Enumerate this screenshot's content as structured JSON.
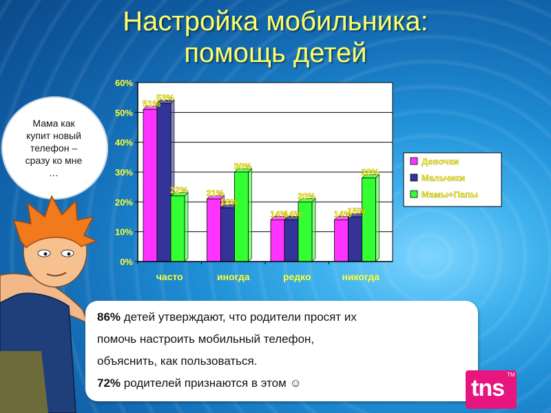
{
  "title": {
    "line1": "Настройка мобильника:",
    "line2": "помощь детей"
  },
  "speech_bubble": {
    "text": "Мама как купит новый телефон – сразу ко мне …"
  },
  "info_box": {
    "line1_bold": "86%",
    "line1_rest": " детей утверждают, что родители просят их",
    "line2": "помочь настроить мобильный телефон,",
    "line3": "объяснить, как пользоваться.",
    "line4_bold": "72%",
    "line4_rest": " родителей признаются в этом ☺"
  },
  "logo": {
    "text": "tns",
    "tm": "TM"
  },
  "colors": {
    "title": "#ffff66",
    "data_label": "#ffff00",
    "girls": "#ff33ff",
    "boys": "#333399",
    "parents": "#33ff33",
    "logo": "#e6167e"
  },
  "chart_data": {
    "type": "bar",
    "categories": [
      "часто",
      "иногда",
      "редко",
      "никогда"
    ],
    "series": [
      {
        "name": "Девочки",
        "values": [
          51,
          21,
          14,
          14
        ],
        "labels": [
          "51%",
          "21%",
          "14%",
          "14%"
        ],
        "color": "#ff33ff"
      },
      {
        "name": "Мальчики",
        "values": [
          53,
          18,
          14,
          15
        ],
        "labels": [
          "53%",
          "18%",
          "14%",
          "15%"
        ],
        "color": "#333399"
      },
      {
        "name": "Мамы+Папы",
        "values": [
          22,
          30,
          20,
          28
        ],
        "labels": [
          "22%",
          "30%",
          "20%",
          "28%"
        ],
        "color": "#33ff33"
      }
    ],
    "yticks": [
      0,
      10,
      20,
      30,
      40,
      50,
      60
    ],
    "ytick_labels": [
      "0%",
      "10%",
      "20%",
      "30%",
      "40%",
      "50%",
      "60%"
    ],
    "ylim": [
      0,
      60
    ],
    "grid": true,
    "legend_position": "right"
  }
}
